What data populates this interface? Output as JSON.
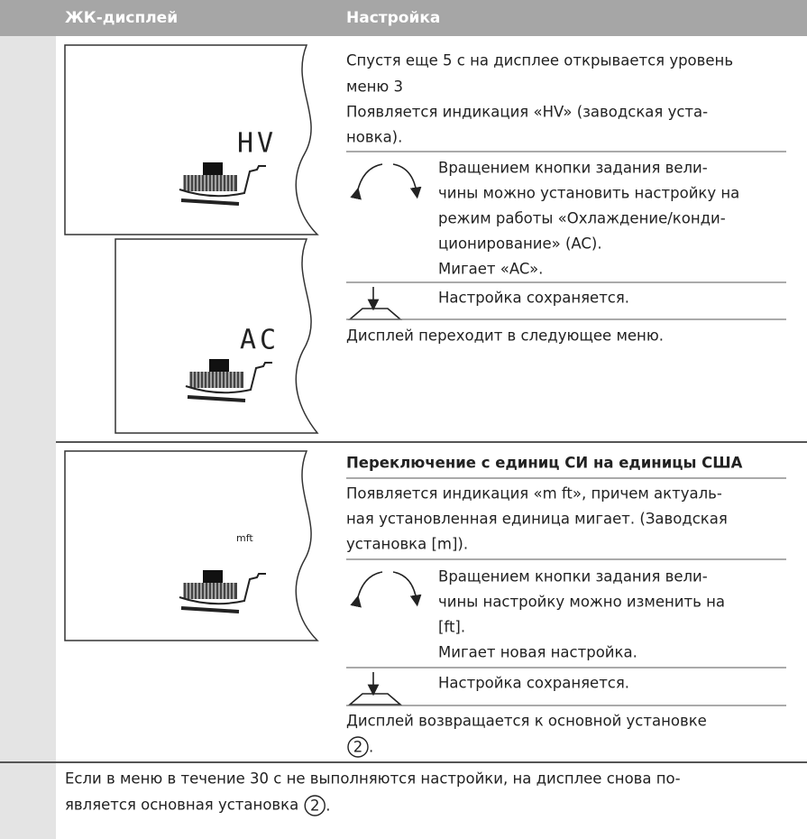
{
  "header": {
    "columns": [
      "ЖК-дисплей",
      "Настройка"
    ]
  },
  "rows": [
    {
      "lcd": [
        "HV",
        "AC"
      ],
      "lines": [
        "Спустя еще 5 с на дисплее открывается уровень",
        "меню 3",
        "Появляется индикация «HV» (заводская уста-",
        "новка)."
      ],
      "rotate": [
        "Вращением кнопки задания вели-",
        "чины можно установить настройку на",
        "режим работы «Охлаждение/конди-",
        "ционирование» (AC).",
        "Мигает «AC»."
      ],
      "press": "Настройка сохраняется.",
      "result": "Дисплей переходит в следующее меню."
    },
    {
      "lcd": "mft",
      "heading": "Переключение с единиц СИ на единицы США",
      "lines": [
        "Появляется индикация «m ft», причем актуаль-",
        "ная установленная единица мигает. (Заводская",
        "установка [m])."
      ],
      "rotate": [
        "Вращением кнопки задания вели-",
        "чины настройку можно изменить на",
        "[ft].",
        "Мигает новая настройка."
      ],
      "press": "Настройка сохраняется.",
      "result": "Дисплей возвращается к основной установке",
      "ref": "2",
      "end": "."
    }
  ],
  "note": {
    "lines": [
      "Если в меню в течение 30 с не выполняются настройки, на дисплее снова по-",
      "является основная установка"
    ],
    "ref": "2",
    "end": "."
  }
}
